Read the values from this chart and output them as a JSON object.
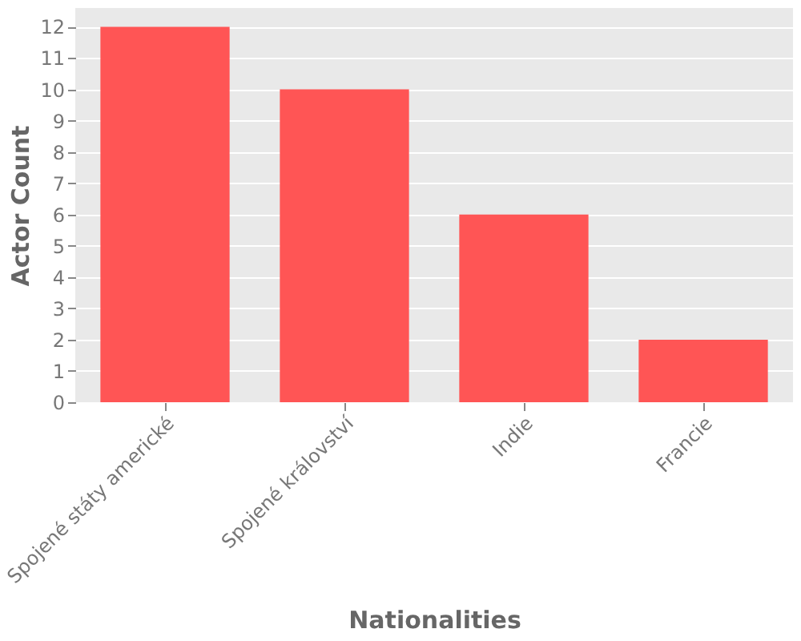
{
  "chart_data": {
    "type": "bar",
    "xlabel": "Nationalities",
    "ylabel": "Actor Count",
    "categories": [
      "Spojené státy americké",
      "Spojené království",
      "Indie",
      "Francie"
    ],
    "values": [
      12,
      10,
      6,
      2
    ],
    "color": "#ff5555",
    "ylim": [
      0,
      12.6
    ],
    "yticks": [
      0,
      1,
      2,
      3,
      4,
      5,
      6,
      7,
      8,
      9,
      10,
      11,
      12
    ],
    "grid": "y"
  }
}
